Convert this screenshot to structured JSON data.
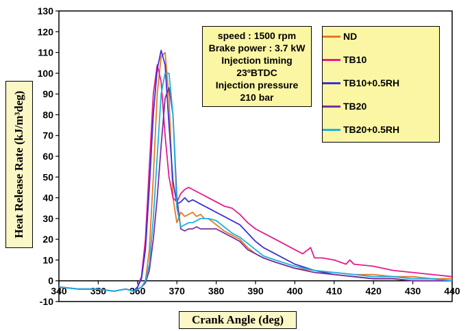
{
  "chart_data": {
    "type": "line",
    "title": "",
    "xlabel": "Crank  Angle (deg)",
    "ylabel": "Heat Release Rate (kJ/m³deg)",
    "xlim": [
      340,
      440
    ],
    "ylim": [
      -10,
      130
    ],
    "xticks": [
      340,
      350,
      360,
      370,
      380,
      390,
      400,
      410,
      420,
      430,
      440
    ],
    "yticks": [
      -10,
      0,
      10,
      20,
      30,
      40,
      50,
      60,
      70,
      80,
      90,
      100,
      110,
      120,
      130
    ],
    "grid": false,
    "legend_position": "top-right",
    "annotation": [
      "speed : 1500 rpm",
      "Brake power : 3.7 kW",
      "Injection timing",
      "23ºBTDC",
      "Injection pressure",
      "210 bar"
    ],
    "series": [
      {
        "name": "ND",
        "color": "#e87722",
        "x": [
          340,
          345,
          350,
          354,
          357,
          359,
          361,
          362,
          363,
          364,
          365,
          366,
          367,
          368,
          369,
          370,
          371,
          372,
          373,
          374,
          375,
          376,
          377,
          378,
          380,
          382,
          384,
          386,
          388,
          390,
          392,
          395,
          400,
          405,
          410,
          415,
          420,
          425,
          430,
          435,
          440
        ],
        "y": [
          -3,
          -4,
          -4,
          -5,
          -4,
          -5,
          -3,
          0,
          15,
          50,
          90,
          108,
          110,
          88,
          40,
          28,
          33,
          31,
          32,
          33,
          31,
          32,
          30,
          30,
          27,
          24,
          22,
          20,
          16,
          13,
          11,
          9,
          6,
          5,
          4,
          3,
          3,
          2,
          2,
          1,
          1
        ]
      },
      {
        "name": "TB10",
        "color": "#e6198a",
        "x": [
          340,
          345,
          350,
          354,
          357,
          359,
          360,
          361,
          362,
          363,
          364,
          365,
          366,
          367,
          368,
          369,
          370,
          371,
          372,
          373,
          374,
          375,
          376,
          378,
          380,
          382,
          384,
          386,
          388,
          390,
          392,
          395,
          398,
          400,
          402,
          404,
          405,
          407,
          410,
          413,
          414,
          415,
          420,
          425,
          430,
          435,
          440
        ],
        "y": [
          -3,
          -4,
          -4,
          -5,
          -4,
          -5,
          -3,
          2,
          20,
          55,
          90,
          104,
          96,
          70,
          50,
          40,
          38,
          42,
          44,
          45,
          44,
          43,
          42,
          40,
          38,
          36,
          35,
          32,
          28,
          25,
          23,
          20,
          17,
          15,
          13,
          16,
          11,
          11,
          10,
          8,
          10,
          8,
          7,
          5,
          4,
          3,
          2
        ]
      },
      {
        "name": "TB10+0.5RH",
        "color": "#3a2fd6",
        "x": [
          340,
          345,
          350,
          354,
          357,
          359,
          360,
          361,
          362,
          363,
          364,
          365,
          366,
          367,
          368,
          369,
          370,
          371,
          372,
          373,
          374,
          375,
          376,
          378,
          380,
          382,
          384,
          386,
          388,
          390,
          392,
          395,
          400,
          405,
          410,
          415,
          420,
          425,
          430,
          435,
          440
        ],
        "y": [
          -3,
          -4,
          -4,
          -5,
          -4,
          -5,
          -3,
          1,
          15,
          45,
          80,
          102,
          111,
          104,
          75,
          48,
          37,
          38,
          40,
          38,
          39,
          38,
          37,
          35,
          33,
          31,
          29,
          27,
          23,
          19,
          16,
          13,
          8,
          5,
          3,
          2,
          1,
          1,
          0,
          0,
          0
        ]
      },
      {
        "name": "TB20",
        "color": "#7a2d9e",
        "x": [
          340,
          345,
          350,
          354,
          357,
          359,
          361,
          362,
          363,
          364,
          365,
          366,
          367,
          368,
          369,
          370,
          371,
          372,
          373,
          374,
          375,
          376,
          377,
          378,
          380,
          382,
          384,
          386,
          388,
          390,
          392,
          395,
          400,
          405,
          410,
          415,
          420,
          425,
          430,
          435,
          440
        ],
        "y": [
          -3,
          -4,
          -4,
          -5,
          -4,
          -5,
          -3,
          -1,
          5,
          20,
          40,
          65,
          88,
          93,
          80,
          40,
          25,
          24,
          25,
          25,
          26,
          25,
          25,
          25,
          25,
          23,
          21,
          19,
          15,
          13,
          11,
          9,
          6,
          4,
          3,
          2,
          1,
          1,
          0,
          0,
          0
        ]
      },
      {
        "name": "TB20+0.5RH",
        "color": "#19b2e0",
        "x": [
          340,
          345,
          350,
          354,
          357,
          359,
          361,
          362,
          363,
          364,
          365,
          366,
          367,
          368,
          369,
          370,
          371,
          372,
          373,
          374,
          375,
          376,
          377,
          378,
          380,
          382,
          384,
          386,
          388,
          390,
          392,
          395,
          400,
          405,
          410,
          415,
          420,
          425,
          430,
          435,
          440
        ],
        "y": [
          -3,
          -4,
          -4,
          -5,
          -4,
          -5,
          -3,
          0,
          8,
          30,
          60,
          90,
          100,
          100,
          80,
          35,
          26,
          27,
          28,
          28,
          29,
          30,
          30,
          30,
          29,
          26,
          23,
          21,
          18,
          15,
          12,
          10,
          7,
          5,
          4,
          3,
          2,
          2,
          1,
          1,
          0
        ]
      }
    ]
  }
}
